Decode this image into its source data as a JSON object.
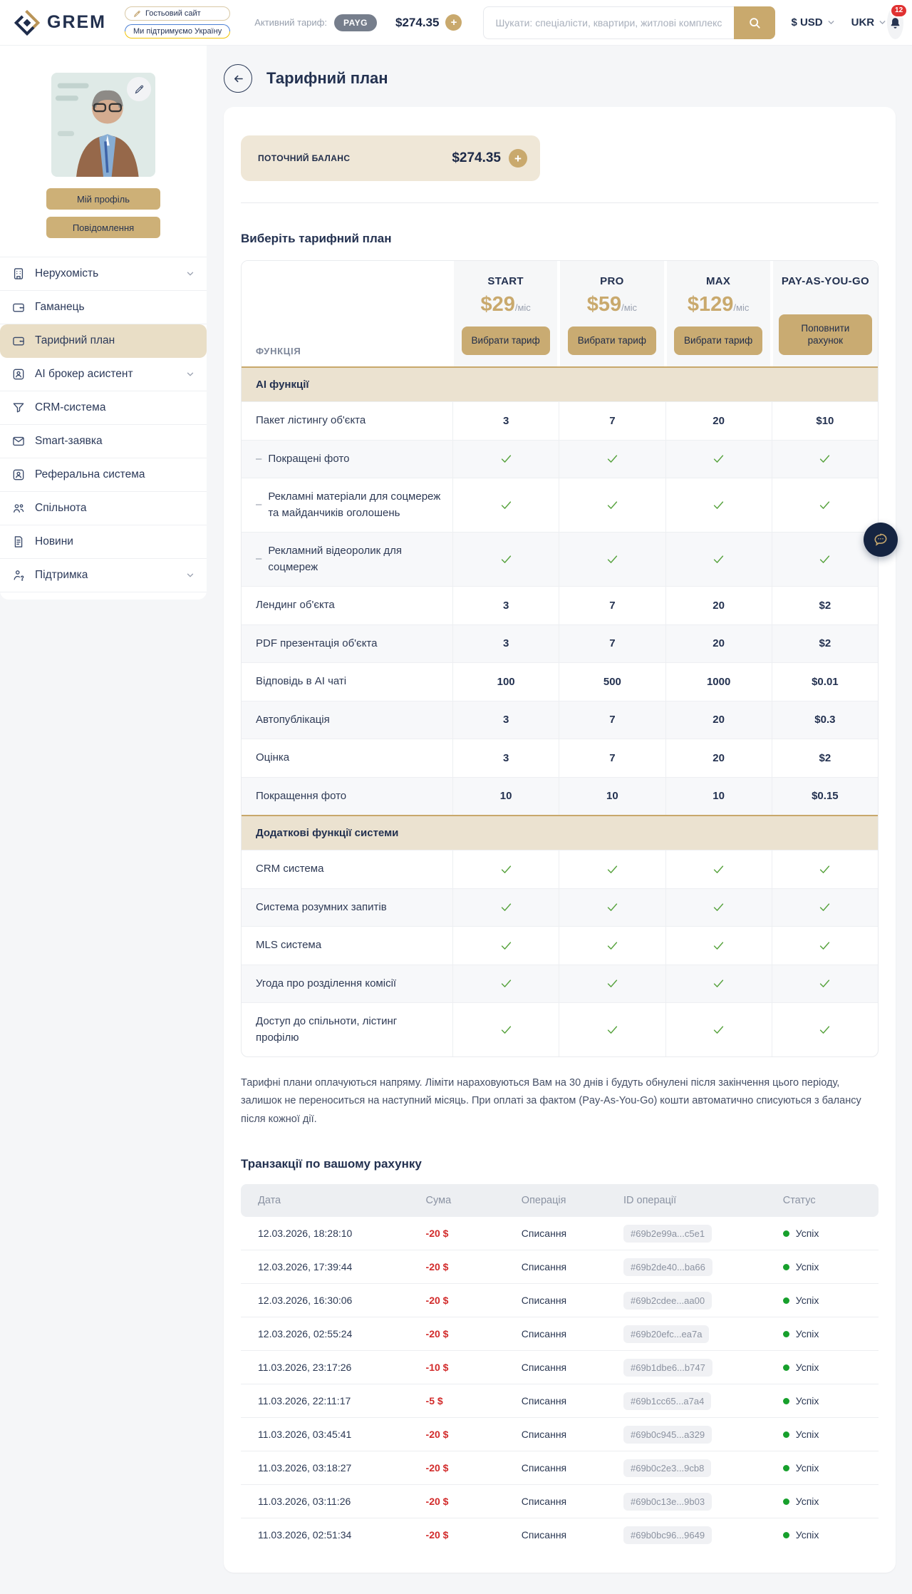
{
  "header": {
    "logo_text": "GREM",
    "badge_guest": "Гостьовий сайт",
    "badge_ukraine": "Ми підтримуємо Україну",
    "active_tariff_label": "Активний тариф:",
    "active_tariff_value": "PAYG",
    "balance": "$274.35",
    "search_placeholder": "Шукати: спеціалісти, квартири, житлові комплекси...",
    "currency": "$ USD",
    "language": "UKR",
    "notifications_count": "12"
  },
  "sidebar": {
    "profile_button": "Мій профіль",
    "messages_button": "Повідомлення",
    "items": [
      {
        "label": "Нерухомість",
        "icon": "building",
        "chevron": true
      },
      {
        "label": "Гаманець",
        "icon": "wallet"
      },
      {
        "label": "Тарифний план",
        "icon": "wallet",
        "active": true
      },
      {
        "label": "AI брокер асистент",
        "icon": "badge",
        "chevron": true
      },
      {
        "label": "CRM-система",
        "icon": "funnel"
      },
      {
        "label": "Smart-заявка",
        "icon": "envelope"
      },
      {
        "label": "Реферальна система",
        "icon": "badge"
      },
      {
        "label": "Спільнота",
        "icon": "people"
      },
      {
        "label": "Новини",
        "icon": "news"
      },
      {
        "label": "Підтримка",
        "icon": "support",
        "chevron": true
      }
    ]
  },
  "page": {
    "title": "Тарифний план",
    "balance_label": "ПОТОЧНИЙ БАЛАНС",
    "balance_value": "$274.35",
    "choose_plan_heading": "Виберіть тарифний план",
    "function_column_label": "ФУНКЦІЯ",
    "plans": [
      {
        "name": "START",
        "price": "$29",
        "period": "/міс",
        "button": "Вибрати тариф"
      },
      {
        "name": "PRO",
        "price": "$59",
        "period": "/міс",
        "button": "Вибрати тариф"
      },
      {
        "name": "MAX",
        "price": "$129",
        "period": "/міс",
        "button": "Вибрати тариф"
      },
      {
        "name": "PAY-AS-YOU-GO",
        "price": "",
        "period": "",
        "button": "Поповнити рахунок"
      }
    ],
    "feature_rows": [
      {
        "type": "section",
        "label": "АІ функції"
      },
      {
        "type": "values",
        "label": "Пакет лістингу об'єкта",
        "values": [
          "3",
          "7",
          "20",
          "$10"
        ]
      },
      {
        "type": "checks",
        "label": "Покращені фото",
        "sub": true
      },
      {
        "type": "checks",
        "label": "Рекламні матеріали для соцмереж та майданчиків оголошень",
        "sub": true
      },
      {
        "type": "checks",
        "label": "Рекламний відеоролик для соцмереж",
        "sub": true
      },
      {
        "type": "values",
        "label": "Лендинг об'єкта",
        "values": [
          "3",
          "7",
          "20",
          "$2"
        ]
      },
      {
        "type": "values",
        "label": "PDF презентація об'єкта",
        "values": [
          "3",
          "7",
          "20",
          "$2"
        ]
      },
      {
        "type": "values",
        "label": "Відповідь в АІ чаті",
        "values": [
          "100",
          "500",
          "1000",
          "$0.01"
        ]
      },
      {
        "type": "values",
        "label": "Автопублікація",
        "values": [
          "3",
          "7",
          "20",
          "$0.3"
        ]
      },
      {
        "type": "values",
        "label": "Оцінка",
        "values": [
          "3",
          "7",
          "20",
          "$2"
        ]
      },
      {
        "type": "values",
        "label": "Покращення фото",
        "values": [
          "10",
          "10",
          "10",
          "$0.15"
        ]
      },
      {
        "type": "section",
        "label": "Додаткові функції системи"
      },
      {
        "type": "checks",
        "label": "CRM система"
      },
      {
        "type": "checks",
        "label": "Система розумних запитів"
      },
      {
        "type": "checks",
        "label": "MLS система"
      },
      {
        "type": "checks",
        "label": "Угода про розділення комісії"
      },
      {
        "type": "checks",
        "label": "Доступ до спільноти, лістинг профілю"
      }
    ],
    "plans_note": "Тарифні плани оплачуються напряму. Ліміти нараховуються Вам на 30 днів і будуть обнулені після закінчення цього періоду, залишок не переноситься на наступний місяць. При оплаті за фактом (Pay-As-You-Go) кошти автоматично списуються з балансу після кожної дії.",
    "transactions_heading": "Транзакції по вашому рахунку",
    "transactions_columns": [
      "Дата",
      "Сума",
      "Операція",
      "ID операції",
      "Статус"
    ],
    "transactions": [
      {
        "date": "12.03.2026, 18:28:10",
        "amount": "-20 $",
        "operation": "Списання",
        "id": "#69b2e99a...c5e1",
        "status": "Успіх"
      },
      {
        "date": "12.03.2026, 17:39:44",
        "amount": "-20 $",
        "operation": "Списання",
        "id": "#69b2de40...ba66",
        "status": "Успіх"
      },
      {
        "date": "12.03.2026, 16:30:06",
        "amount": "-20 $",
        "operation": "Списання",
        "id": "#69b2cdee...aa00",
        "status": "Успіх"
      },
      {
        "date": "12.03.2026, 02:55:24",
        "amount": "-20 $",
        "operation": "Списання",
        "id": "#69b20efc...ea7a",
        "status": "Успіх"
      },
      {
        "date": "11.03.2026, 23:17:26",
        "amount": "-10 $",
        "operation": "Списання",
        "id": "#69b1dbe6...b747",
        "status": "Успіх"
      },
      {
        "date": "11.03.2026, 22:11:17",
        "amount": "-5 $",
        "operation": "Списання",
        "id": "#69b1cc65...a7a4",
        "status": "Успіх"
      },
      {
        "date": "11.03.2026, 03:45:41",
        "amount": "-20 $",
        "operation": "Списання",
        "id": "#69b0c945...a329",
        "status": "Успіх"
      },
      {
        "date": "11.03.2026, 03:18:27",
        "amount": "-20 $",
        "operation": "Списання",
        "id": "#69b0c2e3...9cb8",
        "status": "Успіх"
      },
      {
        "date": "11.03.2026, 03:11:26",
        "amount": "-20 $",
        "operation": "Списання",
        "id": "#69b0c13e...9b03",
        "status": "Успіх"
      },
      {
        "date": "11.03.2026, 02:51:34",
        "amount": "-20 $",
        "operation": "Списання",
        "id": "#69b0bc96...9649",
        "status": "Успіх"
      }
    ]
  },
  "colors": {
    "accent_gold": "#c9a96d",
    "navy_text": "#233150",
    "section_beige": "#ebe2d0",
    "balance_beige": "#efe7d7",
    "danger_red": "#d22b2b",
    "success_green": "#17a02c",
    "notification_red": "#e03131"
  }
}
